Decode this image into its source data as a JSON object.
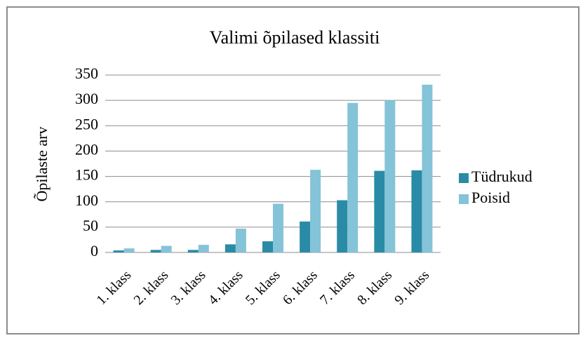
{
  "chart_data": {
    "type": "bar",
    "title": "Valimi õpilased klassiti",
    "y_label": "Õpilaste arv",
    "categories": [
      "1. klass",
      "2. klass",
      "3. klass",
      "4. klass",
      "5. klass",
      "6. klass",
      "7. klass",
      "8. klass",
      "9. klass"
    ],
    "series": [
      {
        "name": "Tüdrukud",
        "color": "#2a8ba6",
        "values": [
          4,
          5,
          5,
          16,
          22,
          61,
          103,
          161,
          162
        ]
      },
      {
        "name": "Poisid",
        "color": "#84c3d8",
        "values": [
          8,
          13,
          15,
          47,
          96,
          163,
          295,
          300,
          331
        ]
      }
    ],
    "ylim": [
      0,
      350
    ],
    "yticks": [
      0,
      50,
      100,
      150,
      200,
      250,
      300,
      350
    ],
    "grid": true,
    "legend": "right"
  }
}
